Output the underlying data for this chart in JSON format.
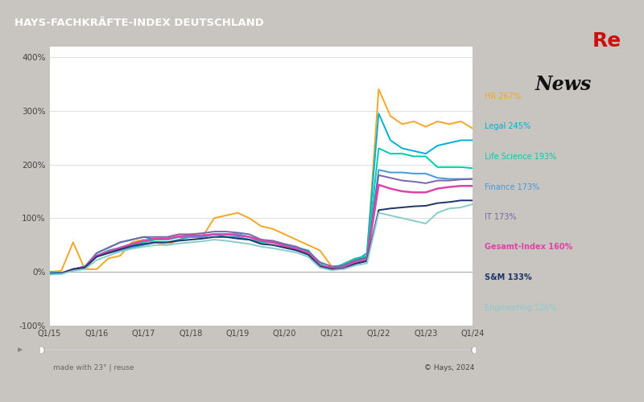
{
  "title": "HAYS-FACHKRÄFTE-INDEX DEUTSCHLAND",
  "title_bg_color": "#1a3569",
  "title_text_color": "#ffffff",
  "chart_bg_color": "#ffffff",
  "panel_bg_color": "#ffffff",
  "outer_bg_color": "#c8c4c0",
  "ylim": [
    -100,
    420
  ],
  "yticks": [
    -100,
    0,
    100,
    200,
    300,
    400
  ],
  "xlabels": [
    "Q1/15",
    "Q1/16",
    "Q1/17",
    "Q1/18",
    "Q1/19",
    "Q1/20",
    "Q1/21",
    "Q1/22",
    "Q1/23",
    "Q1/24"
  ],
  "footer_left": "made with 23° | reuse",
  "footer_right": "© Hays, 2024",
  "series": [
    {
      "name": "HR 267%",
      "color": "#f5a623",
      "linewidth": 1.4,
      "values": [
        0,
        2,
        55,
        5,
        5,
        25,
        30,
        55,
        60,
        55,
        50,
        60,
        70,
        65,
        100,
        105,
        110,
        100,
        85,
        80,
        70,
        60,
        50,
        40,
        10,
        5,
        15,
        30,
        340,
        290,
        275,
        280,
        270,
        280,
        275,
        280,
        267
      ]
    },
    {
      "name": "Legal 245%",
      "color": "#00b0d8",
      "linewidth": 1.4,
      "values": [
        0,
        -2,
        5,
        5,
        35,
        45,
        55,
        60,
        65,
        60,
        60,
        65,
        65,
        65,
        70,
        65,
        65,
        60,
        55,
        55,
        50,
        45,
        40,
        10,
        5,
        10,
        20,
        35,
        295,
        245,
        230,
        225,
        220,
        235,
        240,
        245,
        245
      ]
    },
    {
      "name": "Life Science 193%",
      "color": "#00ccaa",
      "linewidth": 1.4,
      "values": [
        -2,
        -3,
        5,
        10,
        30,
        40,
        45,
        50,
        55,
        60,
        60,
        65,
        65,
        65,
        70,
        70,
        70,
        65,
        55,
        55,
        50,
        45,
        40,
        15,
        5,
        15,
        25,
        30,
        230,
        220,
        220,
        215,
        215,
        195,
        195,
        195,
        193
      ]
    },
    {
      "name": "Finance 173%",
      "color": "#4499dd",
      "linewidth": 1.4,
      "values": [
        -3,
        -3,
        5,
        10,
        30,
        35,
        40,
        45,
        50,
        55,
        55,
        60,
        65,
        65,
        70,
        70,
        70,
        65,
        60,
        55,
        50,
        45,
        38,
        12,
        8,
        10,
        20,
        25,
        190,
        185,
        185,
        183,
        183,
        175,
        173,
        173,
        173
      ]
    },
    {
      "name": "IT 173%",
      "color": "#7766aa",
      "linewidth": 1.4,
      "values": [
        -3,
        -2,
        5,
        10,
        35,
        45,
        55,
        60,
        65,
        65,
        65,
        70,
        70,
        72,
        75,
        75,
        73,
        70,
        60,
        58,
        52,
        47,
        38,
        18,
        10,
        12,
        22,
        27,
        180,
        175,
        170,
        168,
        165,
        170,
        170,
        172,
        173
      ]
    },
    {
      "name": "Gesamt-Index 160%",
      "color": "#dd44aa",
      "linewidth": 1.8,
      "values": [
        -4,
        -3,
        5,
        8,
        30,
        38,
        45,
        52,
        58,
        62,
        62,
        66,
        68,
        68,
        70,
        70,
        68,
        65,
        58,
        55,
        48,
        42,
        35,
        12,
        7,
        8,
        18,
        22,
        162,
        155,
        150,
        148,
        148,
        155,
        158,
        160,
        160
      ]
    },
    {
      "name": "S&M 133%",
      "color": "#1a3569",
      "linewidth": 1.4,
      "values": [
        -4,
        -3,
        5,
        8,
        28,
        35,
        42,
        48,
        52,
        55,
        55,
        58,
        60,
        62,
        65,
        65,
        62,
        60,
        52,
        50,
        45,
        40,
        32,
        10,
        5,
        6,
        15,
        20,
        115,
        118,
        120,
        122,
        123,
        128,
        130,
        133,
        133
      ]
    },
    {
      "name": "Engineering 126%",
      "color": "#88cccc",
      "linewidth": 1.4,
      "values": [
        -5,
        -4,
        2,
        5,
        22,
        30,
        38,
        43,
        47,
        50,
        50,
        53,
        55,
        57,
        60,
        58,
        55,
        52,
        47,
        44,
        40,
        36,
        28,
        8,
        3,
        5,
        12,
        16,
        110,
        105,
        100,
        95,
        90,
        110,
        118,
        120,
        126
      ]
    }
  ],
  "legend_labels": [
    "HR 267%",
    "Legal 245%",
    "Life Science 193%",
    "Finance 173%",
    "IT 173%",
    "Gesamt-Index 160%",
    "S&M 133%",
    "Engineering 126%"
  ],
  "legend_colors": [
    "#f5a623",
    "#00b0d8",
    "#00ccaa",
    "#4499dd",
    "#7766aa",
    "#dd44aa",
    "#1a3569",
    "#88cccc"
  ],
  "legend_bold": [
    false,
    false,
    false,
    false,
    false,
    true,
    true,
    false
  ]
}
